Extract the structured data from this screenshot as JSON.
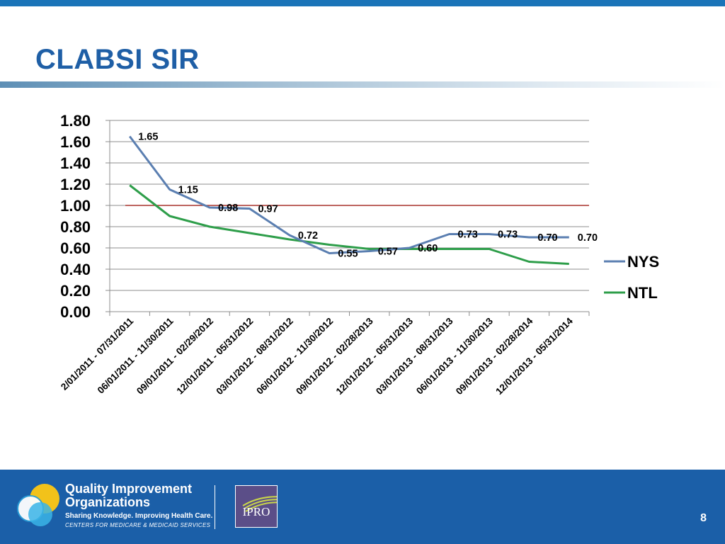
{
  "slide": {
    "title": "CLABSI SIR",
    "page_number": "8"
  },
  "colors": {
    "accent_blue": "#1f5fa6",
    "footer_blue": "#1b5fa8",
    "nys_line": "#5b7fb1",
    "ntl_line": "#2e9e4a",
    "reference_line": "#a8342c"
  },
  "footer": {
    "qio_line1": "Quality Improvement",
    "qio_line2": "Organizations",
    "qio_tagline": "Sharing Knowledge. Improving Health Care.",
    "qio_cms": "CENTERS FOR MEDICARE & MEDICAID SERVICES",
    "ipro_text": "IPRO",
    "qio_logo_icon": "qio-circles-icon",
    "ipro_logo_icon": "ipro-logo-icon"
  },
  "chart_data": {
    "type": "line",
    "title": "",
    "xlabel": "",
    "ylabel": "",
    "ylim": [
      0,
      1.8
    ],
    "ytick_step": 0.2,
    "grid": true,
    "legend_position": "right",
    "categories": [
      "2/01/2011 - 07/31/2011",
      "06/01/2011 - 11/30/2011",
      "09/01/2011 - 02/29/2012",
      "12/01/2011 - 05/31/2012",
      "03/01/2012 - 08/31/2012",
      "06/01/2012 - 11/30/2012",
      "09/01/2012 - 02/28/2013",
      "12/01/2012 - 05/31/2013",
      "03/01/2013 - 08/31/2013",
      "06/01/2013 - 11/30/2013",
      "09/01/2013 - 02/28/2014",
      "12/01/2013 - 05/31/2014"
    ],
    "series": [
      {
        "name": "NYS",
        "color": "#5b7fb1",
        "values": [
          1.65,
          1.15,
          0.98,
          0.97,
          0.72,
          0.55,
          0.57,
          0.6,
          0.73,
          0.73,
          0.7,
          0.7
        ],
        "labels": [
          "1.65",
          "1.15",
          "0.98",
          "0.97",
          "0.72",
          "0.55",
          "0.57",
          "0.60",
          "0.73",
          "0.73",
          "0.70",
          "0.70"
        ]
      },
      {
        "name": "NTL",
        "color": "#2e9e4a",
        "values": [
          1.19,
          0.9,
          0.8,
          0.74,
          0.68,
          0.63,
          0.59,
          0.59,
          0.59,
          0.59,
          0.47,
          0.45
        ]
      }
    ],
    "reference_line": {
      "value": 1.0,
      "color": "#a8342c"
    }
  }
}
